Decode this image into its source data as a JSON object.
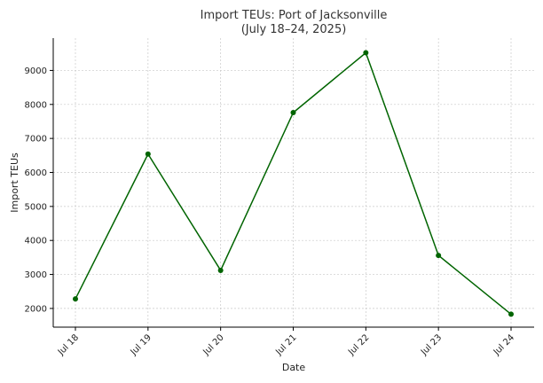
{
  "chart_data": {
    "type": "line",
    "title": "Import TEUs: Port of Jacksonville",
    "subtitle": "(July 18–24, 2025)",
    "xlabel": "Date",
    "ylabel": "Import TEUs",
    "categories": [
      "Jul 18",
      "Jul 19",
      "Jul 20",
      "Jul 21",
      "Jul 22",
      "Jul 23",
      "Jul 24"
    ],
    "series": [
      {
        "values": [
          2280,
          6540,
          3120,
          7760,
          9520,
          3560,
          1830
        ]
      }
    ],
    "ylim": [
      1450,
      9950
    ],
    "yticks": [
      2000,
      3000,
      4000,
      5000,
      6000,
      7000,
      8000,
      9000
    ],
    "ytick_labels": [
      "2000",
      "3000",
      "4000",
      "5000",
      "6000",
      "7000",
      "8000",
      "9000"
    ],
    "grid": true,
    "line_color": "#006400",
    "marker": "circle"
  }
}
